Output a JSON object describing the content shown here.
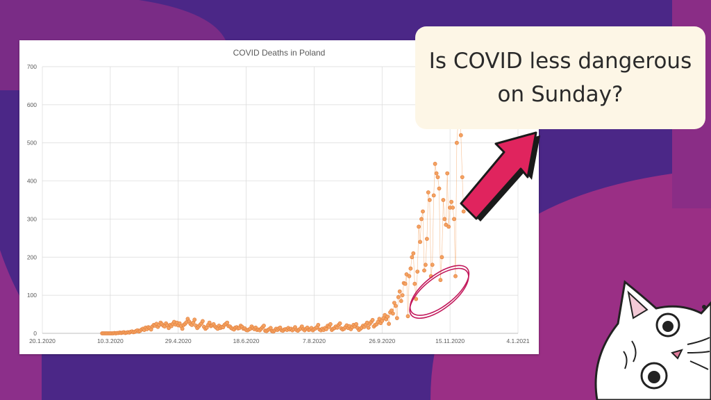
{
  "callout": {
    "text": "Is COVID less dangerous on Sunday?"
  },
  "colors": {
    "background": "#4b2787",
    "blob": "#8c2f8a",
    "marker": "#f4a261",
    "marker_edge": "#e07b39",
    "highlight_ellipse": "#c2185b",
    "arrow": "#e0245e"
  },
  "icons": [
    "arrow-icon",
    "cat-mascot-icon"
  ],
  "chart_data": {
    "type": "scatter",
    "title": "COVID Deaths in Poland",
    "xlabel": "",
    "ylabel": "",
    "x_start_date": "2020-01-20",
    "x_end_date": "2021-01-04",
    "x_tick_labels": [
      "20.1.2020",
      "10.3.2020",
      "29.4.2020",
      "18.6.2020",
      "7.8.2020",
      "26.9.2020",
      "15.11.2020",
      "4.1.2021"
    ],
    "ylim": [
      0,
      700
    ],
    "y_ticks": [
      0,
      100,
      200,
      300,
      400,
      500,
      600,
      700
    ],
    "grid": true,
    "legend": "none",
    "series": [
      {
        "start_date": "2020-03-04",
        "values": [
          0,
          0,
          0,
          0,
          0,
          0,
          0,
          0,
          0,
          1,
          0,
          1,
          1,
          2,
          1,
          2,
          3,
          1,
          2,
          3,
          2,
          4,
          5,
          3,
          4,
          6,
          8,
          5,
          7,
          10,
          12,
          9,
          15,
          11,
          16,
          14,
          10,
          18,
          22,
          20,
          25,
          17,
          22,
          28,
          24,
          20,
          18,
          26,
          21,
          14,
          22,
          19,
          25,
          30,
          23,
          28,
          21,
          26,
          19,
          12,
          22,
          25,
          29,
          38,
          31,
          25,
          22,
          28,
          36,
          20,
          14,
          18,
          22,
          26,
          32,
          17,
          12,
          15,
          22,
          28,
          19,
          21,
          24,
          18,
          15,
          12,
          20,
          14,
          17,
          16,
          22,
          25,
          28,
          19,
          18,
          14,
          12,
          10,
          15,
          16,
          13,
          14,
          20,
          17,
          12,
          13,
          9,
          8,
          10,
          12,
          18,
          14,
          11,
          15,
          9,
          10,
          8,
          12,
          16,
          20,
          7,
          6,
          9,
          11,
          14,
          6,
          5,
          8,
          12,
          9,
          13,
          15,
          8,
          7,
          10,
          11,
          9,
          14,
          10,
          12,
          8,
          11,
          16,
          9,
          7,
          10,
          13,
          18,
          11,
          8,
          12,
          15,
          9,
          10,
          14,
          8,
          11,
          13,
          16,
          22,
          10,
          8,
          12,
          9,
          14,
          11,
          20,
          17,
          24,
          9,
          12,
          14,
          18,
          15,
          22,
          26,
          13,
          10,
          12,
          16,
          21,
          14,
          19,
          11,
          16,
          22,
          18,
          24,
          14,
          9,
          12,
          15,
          20,
          17,
          23,
          28,
          15,
          25,
          30,
          35,
          18,
          22,
          24,
          30,
          38,
          27,
          33,
          40,
          48,
          37,
          44,
          25,
          55,
          60,
          52,
          80,
          72,
          40,
          95,
          110,
          85,
          100,
          132,
          130,
          155,
          45,
          150,
          170,
          200,
          210,
          130,
          90,
          162,
          280,
          240,
          300,
          320,
          165,
          180,
          248,
          370,
          350,
          150,
          180,
          362,
          445,
          420,
          410,
          380,
          140,
          200,
          350,
          300,
          285,
          420,
          280,
          330,
          345,
          330,
          300,
          150,
          500,
          560,
          580,
          520,
          410,
          320
        ]
      }
    ],
    "annotations": [
      {
        "type": "ellipse",
        "description": "highlighted low Sunday values",
        "x_range": [
          "2020-10-12",
          "2020-12-03"
        ],
        "y_range": [
          20,
          190
        ]
      }
    ]
  }
}
